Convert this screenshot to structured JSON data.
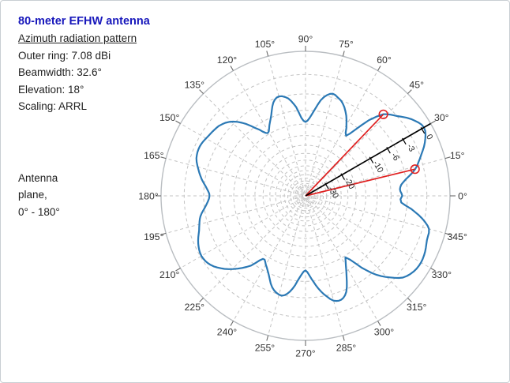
{
  "info_panel": {
    "title": "80-meter EFHW antenna",
    "subtitle": "Azimuth radiation pattern",
    "lines": [
      "Outer ring: 7.08 dBi",
      "Beamwidth: 32.6°",
      "Elevation: 18°",
      "Scaling: ARRL"
    ]
  },
  "plane_note": "Antenna\nplane,\n0° - 180°",
  "chart_data": {
    "type": "polar",
    "title": "80-meter EFHW antenna",
    "subtitle": "Azimuth radiation pattern",
    "outer_ring_dbi": 7.08,
    "beamwidth_deg": 32.6,
    "elevation_deg": 18,
    "scaling": "ARRL",
    "grid": "on",
    "angle_tick_step_deg": 15,
    "angle_labels": [
      "0°",
      "15°",
      "30°",
      "45°",
      "60°",
      "75°",
      "90°",
      "105°",
      "120°",
      "135°",
      "150°",
      "165°",
      "180°",
      "195°",
      "210°",
      "225°",
      "240°",
      "255°",
      "270°",
      "285°",
      "300°",
      "315°",
      "330°",
      "345°"
    ],
    "gain_scale": {
      "line_azimuth_deg": 30,
      "arrl_factor_per_2db": 0.89,
      "tick_labels": [
        {
          "label": "0",
          "db": 0
        },
        {
          "label": "-3",
          "db": -3
        },
        {
          "label": "-6",
          "db": -6
        },
        {
          "label": "-10",
          "db": -10
        },
        {
          "label": "-20",
          "db": -20
        },
        {
          "label": "-30",
          "db": -30
        }
      ]
    },
    "grid_rings_db": [
      -3,
      -6,
      -9,
      -12,
      -15,
      -18,
      -21,
      -24,
      -27,
      -30,
      -33,
      -36,
      -39,
      -42,
      -45,
      -48,
      -51,
      -54
    ],
    "beam_markers": {
      "main_lobe_azimuth_deg": 30,
      "edge_azimuths_deg": [
        13.7,
        46.3
      ],
      "edge_level_db": -3
    },
    "pattern_points_az_r": [
      [
        0,
        0.7
      ],
      [
        4,
        0.685
      ],
      [
        8,
        0.715
      ],
      [
        13.7,
        0.817
      ],
      [
        18,
        0.87
      ],
      [
        24,
        0.945
      ],
      [
        30,
        0.99
      ],
      [
        36,
        0.945
      ],
      [
        41,
        0.88
      ],
      [
        46.3,
        0.817
      ],
      [
        50,
        0.715
      ],
      [
        53,
        0.6
      ],
      [
        56,
        0.525
      ],
      [
        59,
        0.575
      ],
      [
        63,
        0.65
      ],
      [
        68,
        0.72
      ],
      [
        72,
        0.75
      ],
      [
        75,
        0.765
      ],
      [
        78,
        0.745
      ],
      [
        81,
        0.7
      ],
      [
        84,
        0.625
      ],
      [
        87,
        0.565
      ],
      [
        90,
        0.535
      ],
      [
        93,
        0.565
      ],
      [
        96,
        0.645
      ],
      [
        100,
        0.715
      ],
      [
        105,
        0.745
      ],
      [
        109,
        0.715
      ],
      [
        113,
        0.635
      ],
      [
        117,
        0.575
      ],
      [
        121,
        0.53
      ],
      [
        125,
        0.585
      ],
      [
        131,
        0.7
      ],
      [
        136,
        0.77
      ],
      [
        141,
        0.805
      ],
      [
        148,
        0.825
      ],
      [
        155,
        0.845
      ],
      [
        161,
        0.835
      ],
      [
        166,
        0.8
      ],
      [
        171,
        0.76
      ],
      [
        176,
        0.715
      ],
      [
        180,
        0.695
      ],
      [
        185,
        0.72
      ],
      [
        191,
        0.775
      ],
      [
        198,
        0.81
      ],
      [
        204,
        0.85
      ],
      [
        210,
        0.87
      ],
      [
        216,
        0.85
      ],
      [
        222,
        0.79
      ],
      [
        227,
        0.72
      ],
      [
        232,
        0.64
      ],
      [
        236,
        0.55
      ],
      [
        240,
        0.575
      ],
      [
        245,
        0.63
      ],
      [
        250,
        0.705
      ],
      [
        255,
        0.74
      ],
      [
        258,
        0.735
      ],
      [
        262,
        0.68
      ],
      [
        266,
        0.59
      ],
      [
        270,
        0.54
      ],
      [
        274,
        0.6
      ],
      [
        278,
        0.68
      ],
      [
        282,
        0.745
      ],
      [
        285,
        0.785
      ],
      [
        289,
        0.795
      ],
      [
        293,
        0.755
      ],
      [
        297,
        0.655
      ],
      [
        301,
        0.565
      ],
      [
        303,
        0.53
      ],
      [
        305,
        0.565
      ],
      [
        308,
        0.66
      ],
      [
        312,
        0.77
      ],
      [
        316,
        0.85
      ],
      [
        320,
        0.92
      ],
      [
        325,
        0.955
      ],
      [
        330,
        0.965
      ],
      [
        335,
        0.955
      ],
      [
        340,
        0.935
      ],
      [
        345,
        0.925
      ],
      [
        349,
        0.86
      ],
      [
        353,
        0.77
      ],
      [
        356,
        0.695
      ],
      [
        358,
        0.688
      ]
    ],
    "colors": {
      "title": "#1717bb",
      "pattern": "#2b79b5",
      "beam_marker": "#e02020",
      "scale_line": "#000000",
      "grid": "#c3c3c3",
      "labels": "#333333"
    }
  }
}
